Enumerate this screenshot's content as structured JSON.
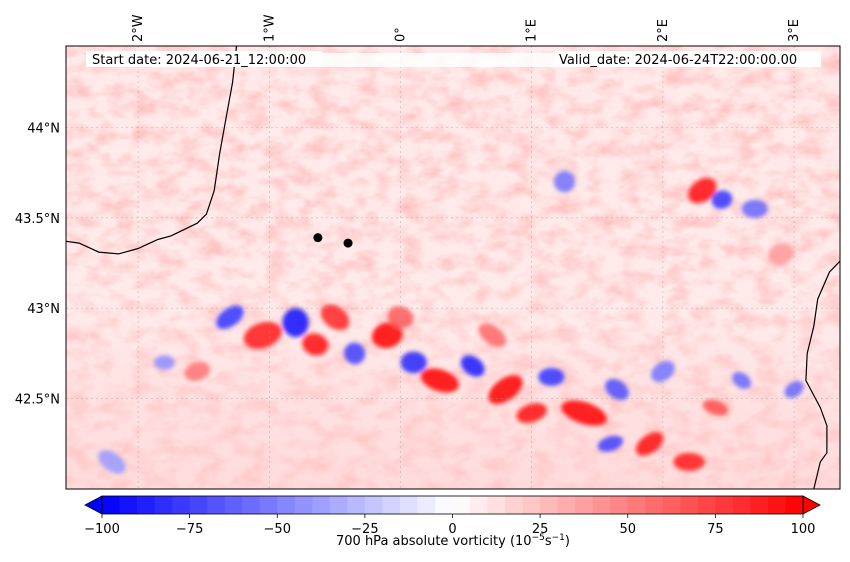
{
  "figure": {
    "start_date_label": "Start date: 2024-06-21_12:00:00",
    "valid_date_label": "Valid_date: 2024-06-24T22:00:00.00",
    "colorbar_label": "700 hPa absolute vorticity (10",
    "colorbar_label_exp": "−5",
    "colorbar_label_mid": "s",
    "colorbar_label_exp2": "−1",
    "colorbar_label_end": ")"
  },
  "chart_data": {
    "type": "heatmap",
    "title": "",
    "variable": "700 hPa absolute vorticity",
    "units": "10^-5 s^-1",
    "lon_range": [
      -2.55,
      3.35
    ],
    "lat_range": [
      42.0,
      44.45
    ],
    "lon_ticks": [
      {
        "value": -2,
        "label": "2°W"
      },
      {
        "value": -1,
        "label": "1°W"
      },
      {
        "value": 0,
        "label": "0°"
      },
      {
        "value": 1,
        "label": "1°E"
      },
      {
        "value": 2,
        "label": "2°E"
      },
      {
        "value": 3,
        "label": "3°E"
      }
    ],
    "lat_ticks": [
      {
        "value": 44.0,
        "label": "44°N"
      },
      {
        "value": 43.5,
        "label": "43.5°N"
      },
      {
        "value": 43.0,
        "label": "43°N"
      },
      {
        "value": 42.5,
        "label": "42.5°N"
      }
    ],
    "colorbar": {
      "min": -100,
      "max": 100,
      "extend": "both",
      "colormap": "bwr",
      "ticks": [
        -100,
        -75,
        -50,
        -25,
        0,
        25,
        50,
        75,
        100
      ],
      "tick_labels": [
        "−100",
        "−75",
        "−50",
        "−25",
        "0",
        "25",
        "50",
        "75",
        "100"
      ]
    },
    "markers": [
      {
        "lon": -0.63,
        "lat": 43.39
      },
      {
        "lon": -0.4,
        "lat": 43.36
      }
    ],
    "coastline_west": [
      [
        -2.55,
        43.37
      ],
      [
        -2.45,
        43.36
      ],
      [
        -2.3,
        43.31
      ],
      [
        -2.15,
        43.3
      ],
      [
        -2.0,
        43.33
      ],
      [
        -1.85,
        43.38
      ],
      [
        -1.75,
        43.4
      ],
      [
        -1.55,
        43.47
      ],
      [
        -1.48,
        43.52
      ],
      [
        -1.42,
        43.65
      ],
      [
        -1.38,
        43.85
      ],
      [
        -1.33,
        44.05
      ],
      [
        -1.28,
        44.25
      ],
      [
        -1.25,
        44.45
      ]
    ],
    "coastline_east": [
      [
        3.35,
        43.26
      ],
      [
        3.27,
        43.2
      ],
      [
        3.18,
        43.05
      ],
      [
        3.15,
        42.9
      ],
      [
        3.1,
        42.75
      ],
      [
        3.09,
        42.6
      ],
      [
        3.2,
        42.45
      ],
      [
        3.25,
        42.35
      ],
      [
        3.25,
        42.2
      ],
      [
        3.2,
        42.15
      ],
      [
        3.15,
        42.0
      ]
    ],
    "vorticity_features": [
      {
        "lon": -1.3,
        "lat": 42.95,
        "rx": 0.12,
        "ry": 0.05,
        "value": -80
      },
      {
        "lon": -1.05,
        "lat": 42.85,
        "rx": 0.15,
        "ry": 0.07,
        "value": 90
      },
      {
        "lon": -0.8,
        "lat": 42.92,
        "rx": 0.1,
        "ry": 0.08,
        "value": -95
      },
      {
        "lon": -0.65,
        "lat": 42.8,
        "rx": 0.1,
        "ry": 0.06,
        "value": 95
      },
      {
        "lon": -0.5,
        "lat": 42.95,
        "rx": 0.12,
        "ry": 0.06,
        "value": 85
      },
      {
        "lon": -0.35,
        "lat": 42.75,
        "rx": 0.08,
        "ry": 0.06,
        "value": -75
      },
      {
        "lon": -0.1,
        "lat": 42.85,
        "rx": 0.12,
        "ry": 0.07,
        "value": 100
      },
      {
        "lon": 0.1,
        "lat": 42.7,
        "rx": 0.1,
        "ry": 0.06,
        "value": -85
      },
      {
        "lon": 0.3,
        "lat": 42.6,
        "rx": 0.15,
        "ry": 0.06,
        "value": 100
      },
      {
        "lon": 0.55,
        "lat": 42.68,
        "rx": 0.1,
        "ry": 0.05,
        "value": -90
      },
      {
        "lon": 0.8,
        "lat": 42.55,
        "rx": 0.15,
        "ry": 0.06,
        "value": 100
      },
      {
        "lon": 1.0,
        "lat": 42.42,
        "rx": 0.12,
        "ry": 0.05,
        "value": 95
      },
      {
        "lon": 1.15,
        "lat": 42.62,
        "rx": 0.1,
        "ry": 0.05,
        "value": -80
      },
      {
        "lon": 1.4,
        "lat": 42.42,
        "rx": 0.18,
        "ry": 0.06,
        "value": 100
      },
      {
        "lon": 1.65,
        "lat": 42.55,
        "rx": 0.1,
        "ry": 0.05,
        "value": -70
      },
      {
        "lon": 1.9,
        "lat": 42.25,
        "rx": 0.12,
        "ry": 0.05,
        "value": 95
      },
      {
        "lon": 1.6,
        "lat": 42.25,
        "rx": 0.1,
        "ry": 0.04,
        "value": -75
      },
      {
        "lon": 2.2,
        "lat": 42.15,
        "rx": 0.12,
        "ry": 0.05,
        "value": 90
      },
      {
        "lon": 2.4,
        "lat": 42.45,
        "rx": 0.1,
        "ry": 0.04,
        "value": 70
      },
      {
        "lon": 2.6,
        "lat": 42.6,
        "rx": 0.08,
        "ry": 0.04,
        "value": -60
      },
      {
        "lon": 2.3,
        "lat": 43.65,
        "rx": 0.12,
        "ry": 0.06,
        "value": 95
      },
      {
        "lon": 2.45,
        "lat": 43.6,
        "rx": 0.08,
        "ry": 0.05,
        "value": -80
      },
      {
        "lon": 2.7,
        "lat": 43.55,
        "rx": 0.1,
        "ry": 0.05,
        "value": -60
      },
      {
        "lon": 1.25,
        "lat": 43.7,
        "rx": 0.08,
        "ry": 0.06,
        "value": -55
      },
      {
        "lon": -2.2,
        "lat": 42.15,
        "rx": 0.12,
        "ry": 0.05,
        "value": -40
      },
      {
        "lon": 3.0,
        "lat": 42.55,
        "rx": 0.08,
        "ry": 0.04,
        "value": -60
      },
      {
        "lon": -1.55,
        "lat": 42.65,
        "rx": 0.1,
        "ry": 0.05,
        "value": 55
      },
      {
        "lon": -1.8,
        "lat": 42.7,
        "rx": 0.08,
        "ry": 0.04,
        "value": -45
      },
      {
        "lon": 0.0,
        "lat": 42.95,
        "rx": 0.1,
        "ry": 0.06,
        "value": 65
      },
      {
        "lon": 0.7,
        "lat": 42.85,
        "rx": 0.12,
        "ry": 0.05,
        "value": 60
      },
      {
        "lon": 2.0,
        "lat": 42.65,
        "rx": 0.1,
        "ry": 0.05,
        "value": -55
      },
      {
        "lon": 2.9,
        "lat": 43.3,
        "rx": 0.1,
        "ry": 0.06,
        "value": 40
      }
    ]
  }
}
